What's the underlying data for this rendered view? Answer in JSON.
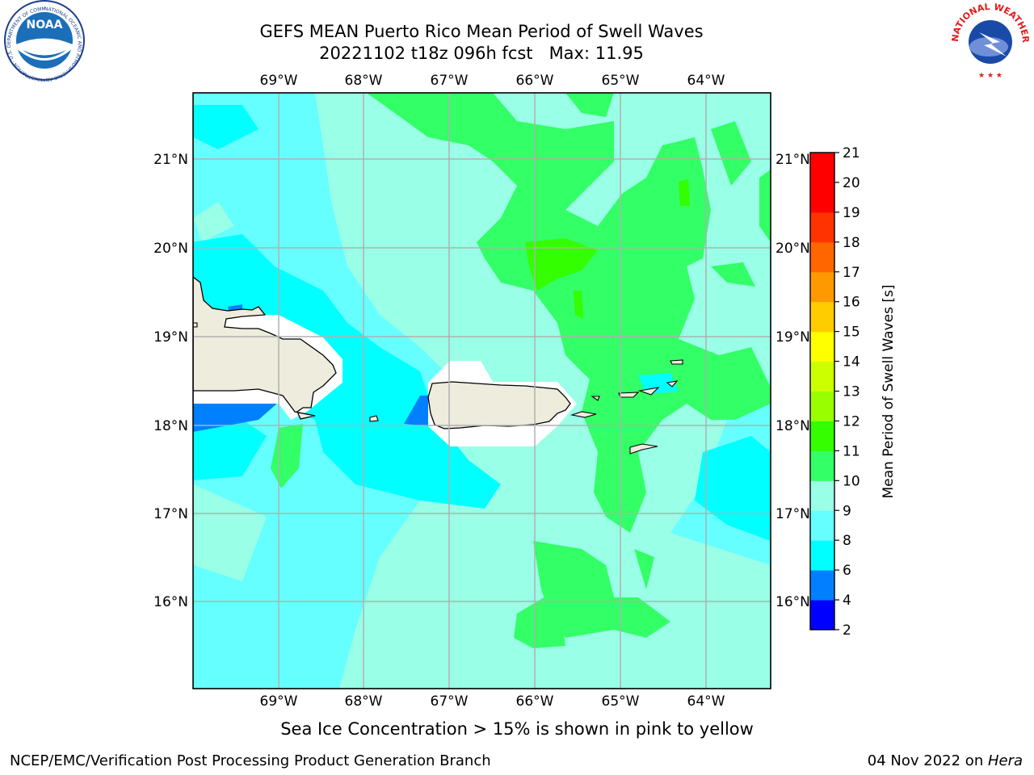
{
  "title": {
    "line1": "GEFS MEAN Puerto Rico Mean Period of Swell Waves",
    "line2": "20221102 t18z 096h fcst   Max: 11.95"
  },
  "map": {
    "lon_labels": [
      "69°W",
      "68°W",
      "67°W",
      "66°W",
      "65°W",
      "64°W"
    ],
    "lat_labels": [
      "21°N",
      "20°N",
      "19°N",
      "18°N",
      "17°N",
      "16°N"
    ],
    "land_color": "#eeecdc",
    "ocean_base_color": "#66ffff",
    "grid_color": "#b0b0b0"
  },
  "colorbar": {
    "label": "Mean Period of Swell Waves [s]",
    "ticks": [
      "21",
      "20",
      "19",
      "18",
      "17",
      "16",
      "15",
      "14",
      "13",
      "12",
      "11",
      "10",
      "9",
      "8",
      "6",
      "4",
      "2"
    ],
    "colors": [
      "#0000ff",
      "#0080ff",
      "#00ffff",
      "#66ffff",
      "#99ffe6",
      "#33ff66",
      "#33ff00",
      "#99ff00",
      "#ccff00",
      "#ffff00",
      "#ffcc00",
      "#ff9900",
      "#ff6600",
      "#ff3300",
      "#ff0000",
      "#ff0000"
    ]
  },
  "caption": "Sea Ice Concentration > 15% is shown in pink to yellow",
  "footer": {
    "left": "NCEP/EMC/Verification Post Processing Product Generation Branch",
    "date": "04 Nov 2022 on ",
    "host": "Hera"
  },
  "logos": {
    "noaa": "NOAA",
    "noaa_ring": "NATIONAL OCEANIC AND ATMOSPHERIC ADMINISTRATION · U.S. DEPARTMENT OF COMMERCE",
    "nws_ring": "NATIONAL WEATHER SERVICE"
  }
}
